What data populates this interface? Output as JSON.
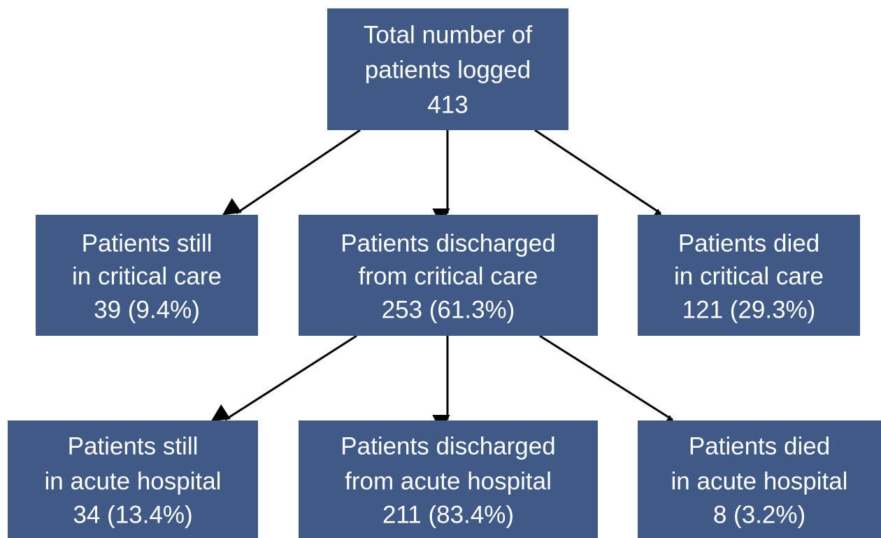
{
  "nodes": [
    {
      "lines": [
        "Total number of",
        "patients logged",
        "413"
      ]
    },
    {
      "lines": [
        "Patients still",
        "in critical care",
        "39 (9.4%)"
      ]
    },
    {
      "lines": [
        "Patients discharged",
        "from critical care",
        "253 (61.3%)"
      ]
    },
    {
      "lines": [
        "Patients died",
        "in critical care",
        "121 (29.3%)"
      ]
    },
    {
      "lines": [
        "Patients still",
        "in acute hospital",
        "34 (13.4%)"
      ]
    },
    {
      "lines": [
        "Patients discharged",
        "from acute hospital",
        "211 (83.4%)"
      ]
    },
    {
      "lines": [
        "Patients died",
        "in acute hospital",
        "8 (3.2%)"
      ]
    }
  ]
}
